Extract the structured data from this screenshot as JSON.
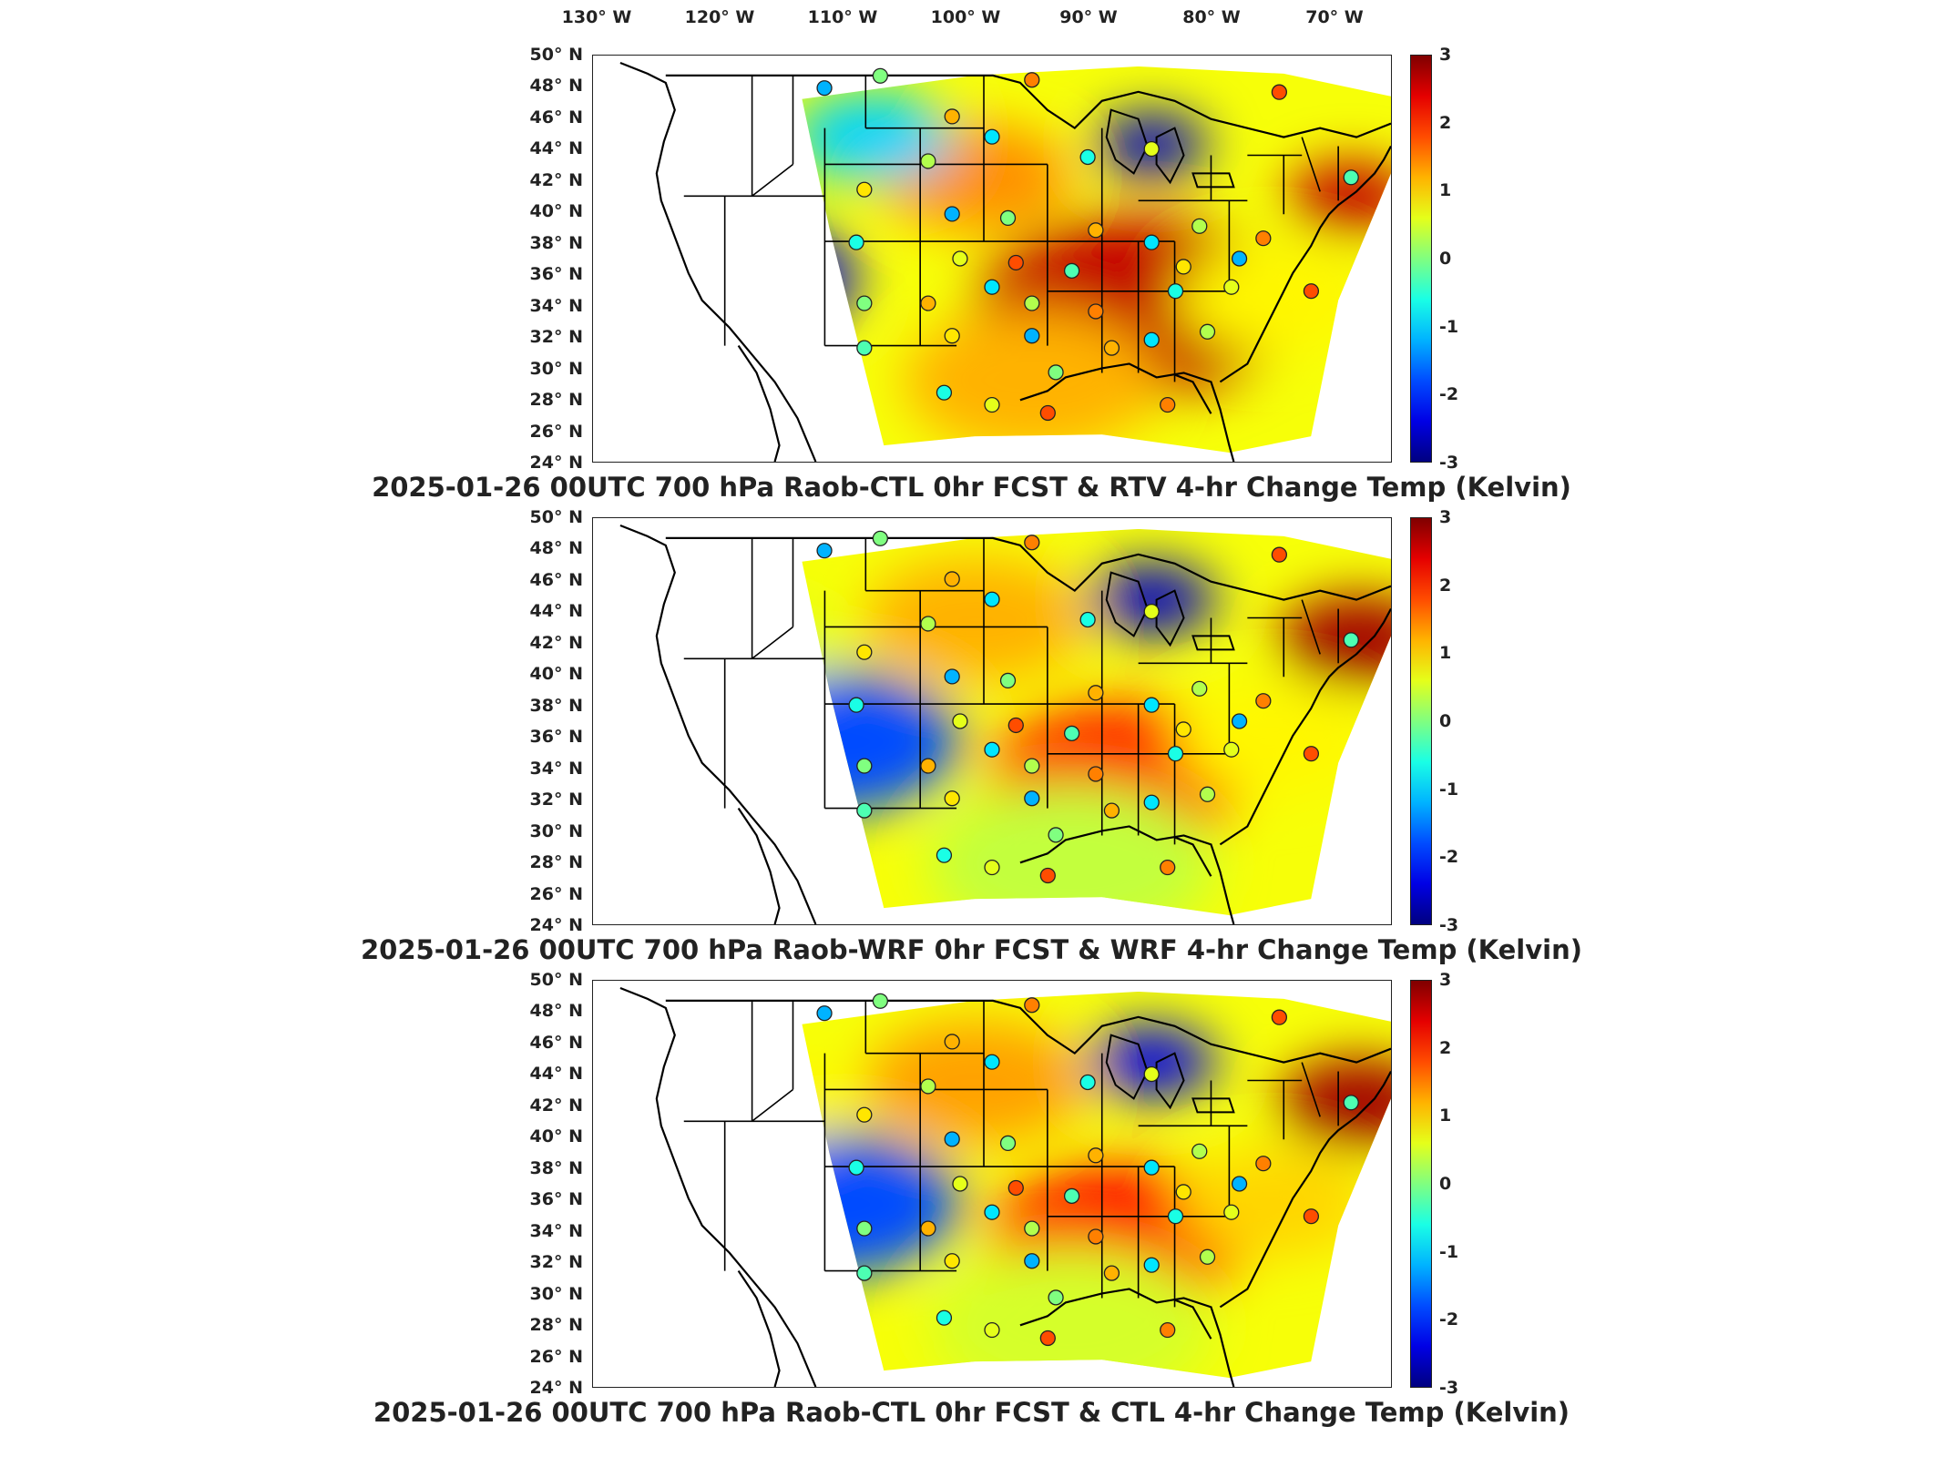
{
  "lon_labels": [
    "130° W",
    "120° W",
    "110° W",
    "100° W",
    "90° W",
    "80° W",
    "70° W"
  ],
  "lat_labels": [
    "50° N",
    "48° N",
    "46° N",
    "44° N",
    "42° N",
    "40° N",
    "38° N",
    "36° N",
    "34° N",
    "32° N",
    "30° N",
    "28° N",
    "26° N",
    "24° N"
  ],
  "colorbar": {
    "ticks": [
      "3",
      "2",
      "1",
      "0",
      "-1",
      "-2",
      "-3"
    ],
    "colormap": "jet",
    "min": -3,
    "max": 3
  },
  "panels": [
    {
      "title": "2025-01-26 00UTC 700 hPa Raob-CTL 0hr FCST & RTV 4-hr Change Temp (Kelvin)"
    },
    {
      "title": "2025-01-26 00UTC 700 hPa Raob-WRF 0hr FCST & WRF 4-hr Change Temp (Kelvin)"
    },
    {
      "title": "2025-01-26 00UTC 700 hPa Raob-CTL 0hr FCST & CTL 4-hr Change Temp (Kelvin)"
    }
  ],
  "colors": {
    "jet_low": "#00008f",
    "jet_mid": "#7fff7f",
    "jet_high": "#800000",
    "outline": "#000000"
  }
}
